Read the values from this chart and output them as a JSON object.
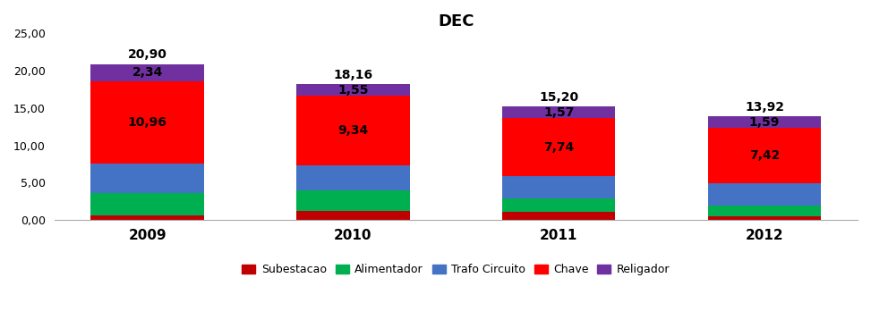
{
  "title": "DEC",
  "years": [
    "2009",
    "2010",
    "2011",
    "2012"
  ],
  "totals": [
    20.9,
    18.16,
    15.2,
    13.92
  ],
  "segments": {
    "Subestacao": [
      0.64,
      1.2,
      1.05,
      0.48
    ],
    "Alimentador": [
      3.0,
      2.73,
      1.85,
      1.43
    ],
    "Trafo Circuito": [
      3.96,
      3.34,
      2.99,
      3.0
    ],
    "Chave": [
      10.96,
      9.34,
      7.74,
      7.42
    ],
    "Religador": [
      2.34,
      1.55,
      1.57,
      1.59
    ]
  },
  "colors": {
    "Subestacao": "#C00000",
    "Alimentador": "#00B050",
    "Trafo Circuito": "#4472C4",
    "Chave": "#FF0000",
    "Religador": "#7030A0"
  },
  "ylim": [
    0,
    25
  ],
  "yticks": [
    0.0,
    5.0,
    10.0,
    15.0,
    20.0,
    25.0
  ],
  "ytick_labels": [
    "0,00",
    "5,00",
    "10,00",
    "15,00",
    "20,00",
    "25,00"
  ],
  "bar_width": 0.55,
  "background_color": "#FFFFFF",
  "legend_order": [
    "Subestacao",
    "Alimentador",
    "Trafo Circuito",
    "Chave",
    "Religador"
  ]
}
